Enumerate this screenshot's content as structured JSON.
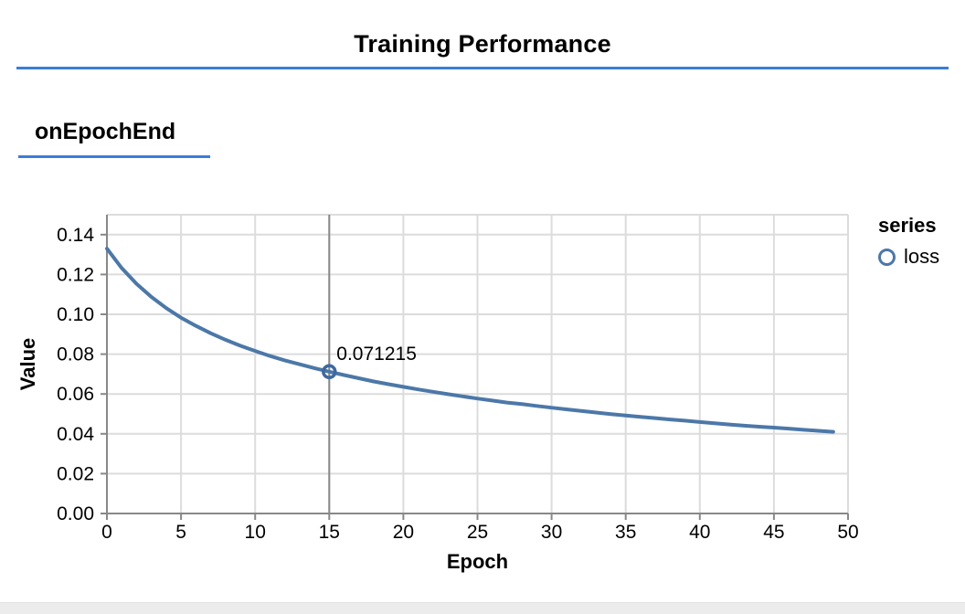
{
  "page": {
    "title": "Training Performance",
    "section_title": "onEpochEnd",
    "accent_blue": "#3b7dd8",
    "bottom_bar_color": "#ececec"
  },
  "legend": {
    "title": "series",
    "items": [
      {
        "label": "loss",
        "marker_color": "#4c78a8"
      }
    ]
  },
  "chart_data": {
    "type": "line",
    "xlabel": "Epoch",
    "ylabel": "Value",
    "xlim": [
      0,
      50
    ],
    "ylim": [
      0,
      0.15
    ],
    "grid": true,
    "legend_position": "right",
    "xticks": [
      0,
      5,
      10,
      15,
      20,
      25,
      30,
      35,
      40,
      45,
      50
    ],
    "xtick_labels": [
      "0",
      "5",
      "10",
      "15",
      "20",
      "25",
      "30",
      "35",
      "40",
      "45",
      "50"
    ],
    "yticks": [
      0,
      0.02,
      0.04,
      0.06,
      0.08,
      0.1,
      0.12,
      0.14
    ],
    "ytick_labels": [
      "0.00",
      "0.02",
      "0.04",
      "0.06",
      "0.08",
      "0.10",
      "0.12",
      "0.14"
    ],
    "colors": {
      "grid": "#dcdcdc",
      "axis": "#888888",
      "crosshair": "#888888",
      "marker_ring": "#3f689e"
    },
    "series": [
      {
        "name": "loss",
        "color": "#4c78a8",
        "x": [
          0,
          1,
          2,
          3,
          4,
          5,
          6,
          7,
          8,
          9,
          10,
          11,
          12,
          13,
          14,
          15,
          16,
          17,
          18,
          19,
          20,
          21,
          22,
          23,
          24,
          25,
          26,
          27,
          28,
          29,
          30,
          31,
          32,
          33,
          34,
          35,
          36,
          37,
          38,
          39,
          40,
          41,
          42,
          43,
          44,
          45,
          46,
          47,
          48,
          49
        ],
        "y": [
          0.133,
          0.1232,
          0.1153,
          0.1087,
          0.1031,
          0.0983,
          0.0942,
          0.0905,
          0.0872,
          0.0842,
          0.0816,
          0.0791,
          0.0769,
          0.0749,
          0.073,
          0.071215,
          0.0695,
          0.0679,
          0.0663,
          0.0649,
          0.0636,
          0.0623,
          0.0611,
          0.0599,
          0.0588,
          0.0577,
          0.0567,
          0.0557,
          0.0549,
          0.054,
          0.0531,
          0.0523,
          0.0515,
          0.0507,
          0.0499,
          0.0492,
          0.0485,
          0.0479,
          0.0472,
          0.0466,
          0.0459,
          0.0453,
          0.0447,
          0.0441,
          0.0436,
          0.0431,
          0.0426,
          0.042,
          0.0415,
          0.041
        ]
      }
    ],
    "highlight": {
      "x": 15,
      "y": 0.071215,
      "label": "0.071215"
    }
  }
}
